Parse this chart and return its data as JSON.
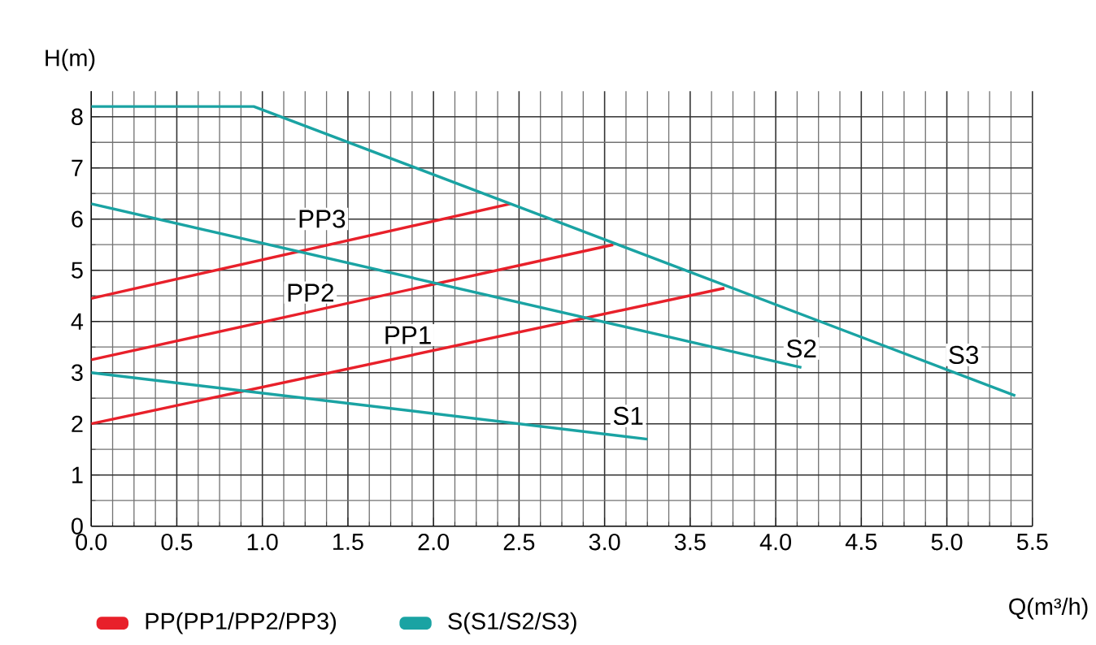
{
  "chart_data": {
    "type": "line",
    "xlabel": "Q(m³/h)",
    "ylabel": "H(m)",
    "xlim": [
      0,
      5.5
    ],
    "ylim": [
      0,
      8.5
    ],
    "xticks": [
      {
        "value": 0,
        "label": "0.0"
      },
      0.5,
      {
        "value": 1,
        "label": "1.0"
      },
      1.5,
      {
        "value": 2,
        "label": "2.0"
      },
      2.5,
      {
        "value": 3,
        "label": "3.0"
      },
      3.5,
      {
        "value": 4,
        "label": "4.0"
      },
      4.5,
      {
        "value": 5,
        "label": "5.0"
      },
      5.5
    ],
    "yticks": [
      0,
      1,
      2,
      3,
      4,
      5,
      6,
      7,
      8
    ],
    "grid": true,
    "marker": "none",
    "line_style": "solid",
    "series": [
      {
        "name": "PP1",
        "color": "#e8202a",
        "x": [
          0,
          3.7
        ],
        "values": [
          2.0,
          4.65
        ]
      },
      {
        "name": "PP2",
        "color": "#e8202a",
        "x": [
          0,
          3.05
        ],
        "values": [
          3.25,
          5.5
        ]
      },
      {
        "name": "PP3",
        "color": "#e8202a",
        "x": [
          0,
          2.45
        ],
        "values": [
          4.45,
          6.3
        ]
      },
      {
        "name": "S1",
        "color": "#1aa3a3",
        "x": [
          0,
          3.25
        ],
        "values": [
          3.0,
          1.7
        ]
      },
      {
        "name": "S2",
        "color": "#1aa3a3",
        "x": [
          0,
          4.15
        ],
        "values": [
          6.3,
          3.1
        ]
      },
      {
        "name": "S3",
        "color": "#1aa3a3",
        "x": [
          0,
          0.95,
          2.45,
          5.4
        ],
        "values": [
          8.2,
          8.2,
          6.3,
          2.55
        ]
      }
    ],
    "annotations": [
      "PP(PP1/PP2/PP3)",
      "S(S1/S2/S3)"
    ]
  }
}
